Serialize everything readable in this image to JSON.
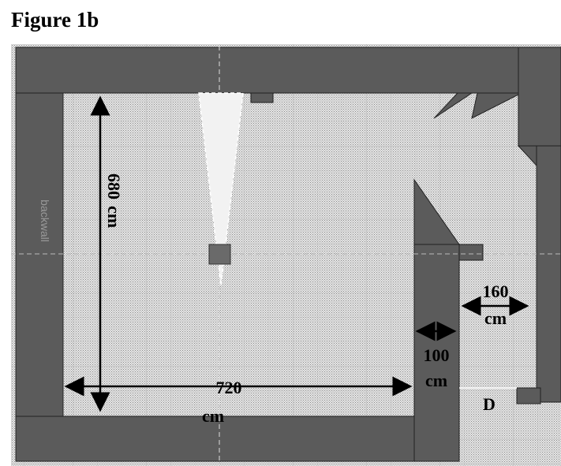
{
  "header": {
    "title": "Figure 1b"
  },
  "plan": {
    "wall_label": "backwall",
    "height_dim": {
      "value": "680",
      "unit": "cm"
    },
    "width_dim": {
      "value": "720",
      "unit": "cm"
    },
    "wall_dim": {
      "value": "100",
      "unit": "cm"
    },
    "door_dim": {
      "value": "160",
      "unit": "cm"
    },
    "door_label": "D"
  }
}
